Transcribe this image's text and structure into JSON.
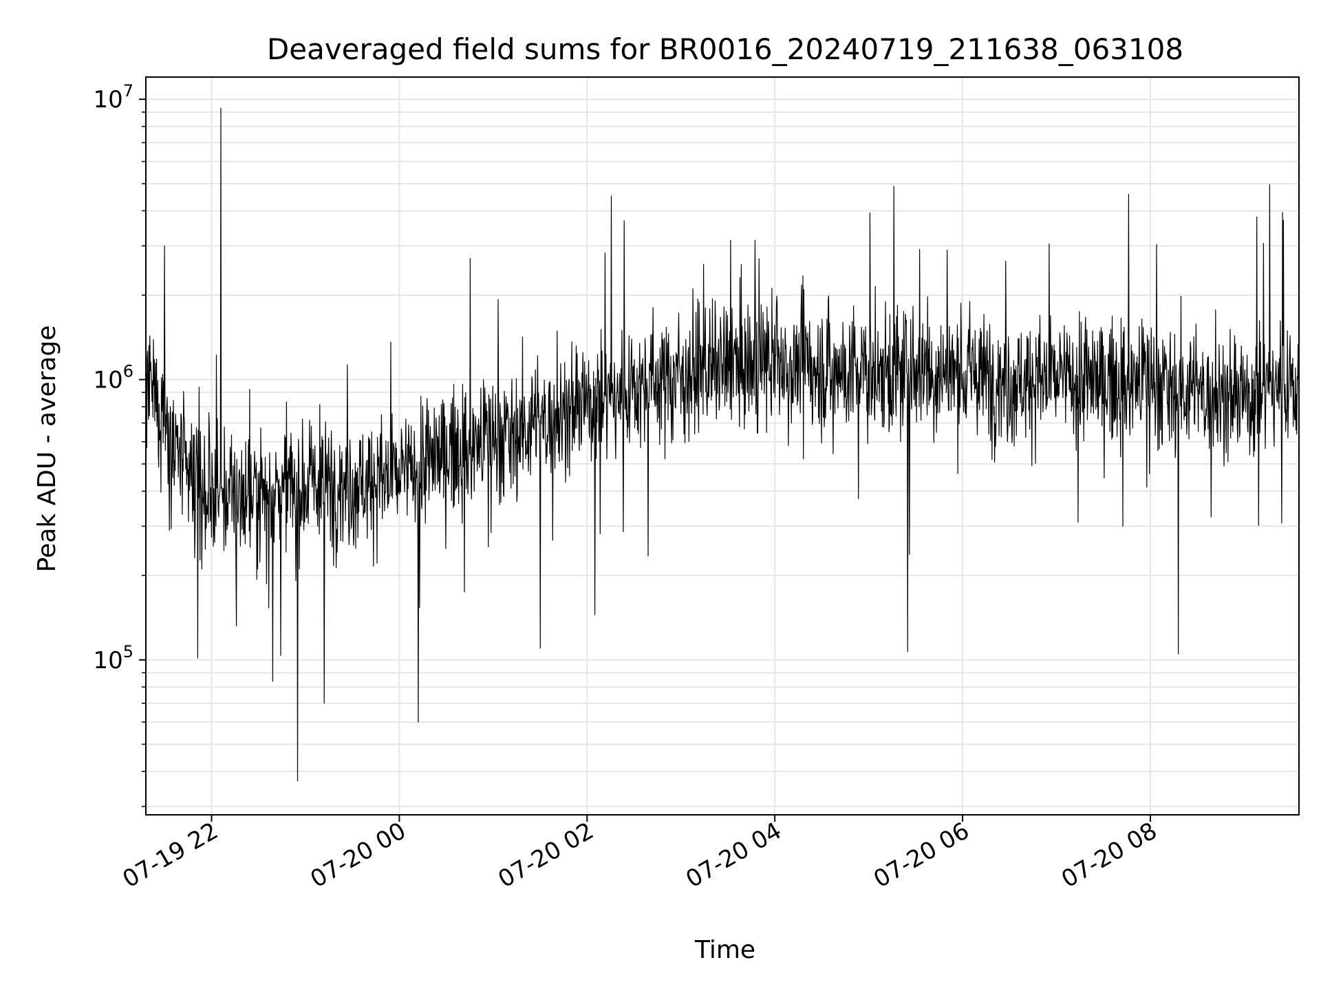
{
  "chart_data": {
    "type": "line",
    "title": "Deaveraged field sums for BR0016_20240719_211638_063108",
    "xlabel": "Time",
    "ylabel": "Peak ADU - average",
    "yscale": "log",
    "ylim": [
      28000,
      12000000
    ],
    "xlim": [
      "2024-07-19 21:18",
      "2024-07-20 09:35"
    ],
    "grid": true,
    "line_color": "#000000",
    "grid_color": "#e6e6e6",
    "x_ticks": [
      {
        "value": "2024-07-19 22:00",
        "label": "07-19 22"
      },
      {
        "value": "2024-07-20 00:00",
        "label": "07-20 00"
      },
      {
        "value": "2024-07-20 02:00",
        "label": "07-20 02"
      },
      {
        "value": "2024-07-20 04:00",
        "label": "07-20 04"
      },
      {
        "value": "2024-07-20 06:00",
        "label": "07-20 06"
      },
      {
        "value": "2024-07-20 08:00",
        "label": "07-20 08"
      }
    ],
    "y_ticks": [
      {
        "value": 100000,
        "base": "10",
        "exp": "5"
      },
      {
        "value": 1000000,
        "base": "10",
        "exp": "6"
      },
      {
        "value": 10000000,
        "base": "10",
        "exp": "7"
      }
    ],
    "series": [
      {
        "x": [
          "2024-07-19 21:18",
          "2024-07-19 21:30",
          "2024-07-19 21:40",
          "2024-07-19 21:50",
          "2024-07-19 22:00",
          "2024-07-19 22:30",
          "2024-07-19 23:00",
          "2024-07-19 23:30",
          "2024-07-20 00:00",
          "2024-07-20 00:30",
          "2024-07-20 01:00",
          "2024-07-20 01:30",
          "2024-07-20 02:00",
          "2024-07-20 02:30",
          "2024-07-20 03:00",
          "2024-07-20 03:30",
          "2024-07-20 04:00",
          "2024-07-20 04:30",
          "2024-07-20 05:00",
          "2024-07-20 05:30",
          "2024-07-20 06:00",
          "2024-07-20 06:30",
          "2024-07-20 07:00",
          "2024-07-20 07:30",
          "2024-07-20 08:00",
          "2024-07-20 08:30",
          "2024-07-20 09:00",
          "2024-07-20 09:20",
          "2024-07-20 09:35"
        ],
        "y": [
          900000,
          800000,
          500000,
          400000,
          380000,
          400000,
          420000,
          430000,
          450000,
          550000,
          620000,
          700000,
          820000,
          950000,
          1050000,
          1100000,
          1150000,
          1100000,
          1050000,
          1100000,
          1050000,
          1000000,
          1000000,
          980000,
          1000000,
          900000,
          850000,
          1000000,
          950000
        ],
        "spikes": [
          {
            "x": "2024-07-19 22:06",
            "y": 9300000
          },
          {
            "x": "2024-07-19 22:55",
            "y": 37000
          },
          {
            "x": "2024-07-20 00:12",
            "y": 60000
          },
          {
            "x": "2024-07-19 23:12",
            "y": 70000
          },
          {
            "x": "2024-07-20 05:25",
            "y": 107000
          },
          {
            "x": "2024-07-20 08:18",
            "y": 105000
          },
          {
            "x": "2024-07-20 09:08",
            "y": 3800000
          },
          {
            "x": "2024-07-20 09:25",
            "y": 3700000
          },
          {
            "x": "2024-07-19 21:30",
            "y": 3000000
          },
          {
            "x": "2024-07-20 05:50",
            "y": 2900000
          },
          {
            "x": "2024-07-20 03:50",
            "y": 2700000
          },
          {
            "x": "2024-07-20 01:30",
            "y": 110000
          },
          {
            "x": "2024-07-20 02:05",
            "y": 145000
          }
        ]
      }
    ]
  }
}
